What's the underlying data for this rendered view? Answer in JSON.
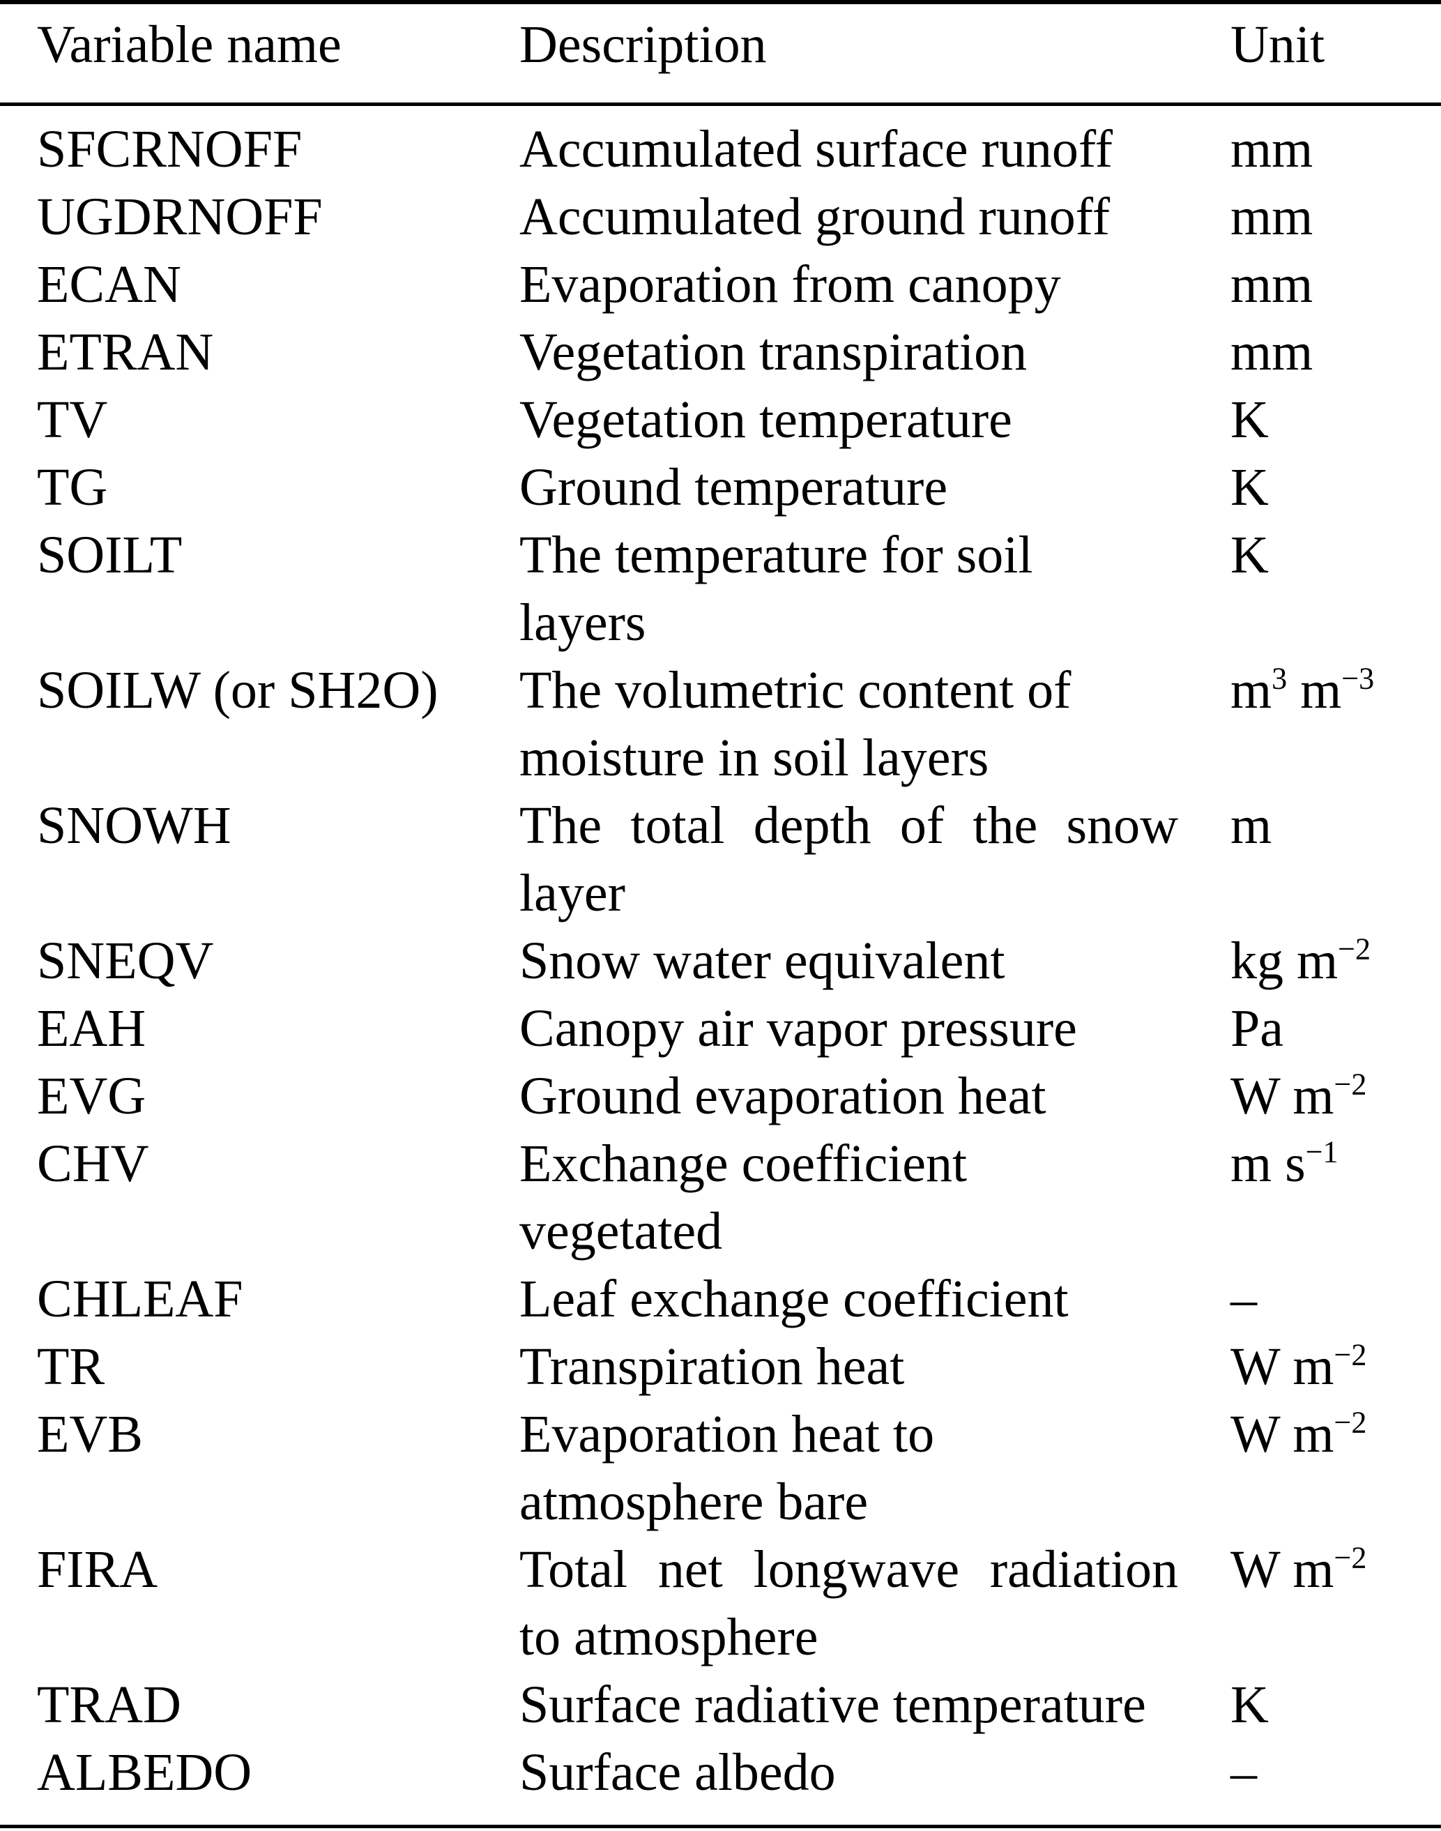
{
  "page": {
    "background_color": "#ffffff",
    "text_color": "#000000",
    "rule_color": "#000000"
  },
  "table": {
    "columns": [
      {
        "label": "Variable name"
      },
      {
        "label": "Description"
      },
      {
        "label": "Unit"
      }
    ],
    "rows": [
      {
        "name": "SFCRNOFF",
        "description": [
          {
            "text": "Accumulated surface runoff"
          }
        ],
        "unit": "mm"
      },
      {
        "name": "UGDRNOFF",
        "description": [
          {
            "text": "Accumulated ground runoff"
          }
        ],
        "unit": "mm"
      },
      {
        "name": "ECAN",
        "description": [
          {
            "text": "Evaporation from canopy"
          }
        ],
        "unit": "mm"
      },
      {
        "name": "ETRAN",
        "description": [
          {
            "text": "Vegetation transpiration"
          }
        ],
        "unit": "mm"
      },
      {
        "name": "TV",
        "description": [
          {
            "text": "Vegetation temperature"
          }
        ],
        "unit": "K"
      },
      {
        "name": "TG",
        "description": [
          {
            "text": "Ground temperature"
          }
        ],
        "unit": "K"
      },
      {
        "name": "SOILT",
        "description": [
          {
            "text": "The temperature for soil"
          },
          {
            "text": "layers"
          }
        ],
        "unit": "K"
      },
      {
        "name": "SOILW (or SH2O)",
        "description": [
          {
            "text": "The volumetric content of"
          },
          {
            "text": "moisture in soil layers"
          }
        ],
        "unit": "m^3 m^−3"
      },
      {
        "name": "SNOWH",
        "description": [
          {
            "text": "The total depth of the snow",
            "stretch": true
          },
          {
            "text": "layer"
          }
        ],
        "unit": "m"
      },
      {
        "name": "SNEQV",
        "description": [
          {
            "text": "Snow water equivalent"
          }
        ],
        "unit": "kg m^−2"
      },
      {
        "name": "EAH",
        "description": [
          {
            "text": "Canopy air vapor pressure"
          }
        ],
        "unit": "Pa"
      },
      {
        "name": "EVG",
        "description": [
          {
            "text": "Ground evaporation heat"
          }
        ],
        "unit": "W m^−2"
      },
      {
        "name": "CHV",
        "description": [
          {
            "text": "Exchange coefficient"
          },
          {
            "text": "vegetated"
          }
        ],
        "unit": "m s^−1"
      },
      {
        "name": "CHLEAF",
        "description": [
          {
            "text": "Leaf exchange coefficient"
          }
        ],
        "unit": "–"
      },
      {
        "name": "TR",
        "description": [
          {
            "text": "Transpiration heat"
          }
        ],
        "unit": "W m^−2"
      },
      {
        "name": "EVB",
        "description": [
          {
            "text": "Evaporation heat to"
          },
          {
            "text": "atmosphere bare"
          }
        ],
        "unit": "W m^−2"
      },
      {
        "name": "FIRA",
        "description": [
          {
            "text": "Total net longwave radiation",
            "stretch": true
          },
          {
            "text": "to atmosphere"
          }
        ],
        "unit": "W m^−2"
      },
      {
        "name": "TRAD",
        "description": [
          {
            "text": "Surface radiative temperature"
          }
        ],
        "unit": "K"
      },
      {
        "name": "ALBEDO",
        "description": [
          {
            "text": "Surface albedo"
          }
        ],
        "unit": "–"
      }
    ]
  }
}
